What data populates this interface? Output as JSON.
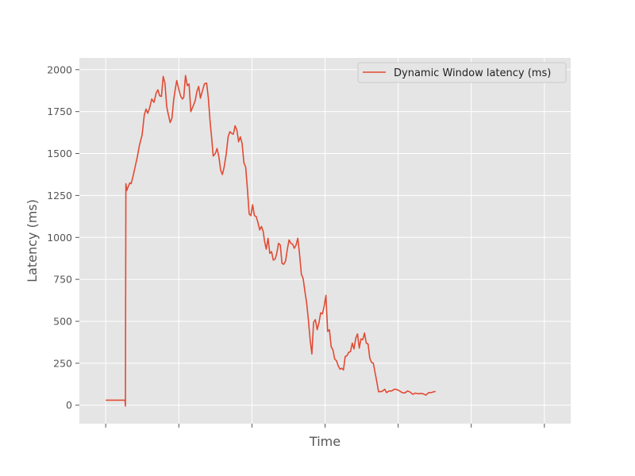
{
  "chart_data": {
    "type": "line",
    "xlabel": "Time",
    "ylabel": "Latency (ms)",
    "xlim": [
      -0.06,
      1.06
    ],
    "ylim": [
      -110,
      2070
    ],
    "x_ticks": [
      0,
      0.1667,
      0.3333,
      0.5,
      0.6667,
      0.8333,
      1
    ],
    "y_ticks": [
      0,
      250,
      500,
      750,
      1000,
      1250,
      1500,
      1750,
      2000
    ],
    "grid": true,
    "legend_position": "top-right",
    "colors": {
      "series": "#e24a33",
      "plot_bg": "#e5e5e5",
      "grid": "#ffffff",
      "text": "#555555"
    },
    "series": [
      {
        "name": "Dynamic Window latency (ms)",
        "points": [
          [
            0.0,
            30
          ],
          [
            0.044,
            30
          ],
          [
            0.045,
            -5
          ],
          [
            0.046,
            1320
          ],
          [
            0.048,
            1280
          ],
          [
            0.051,
            1300
          ],
          [
            0.055,
            1325
          ],
          [
            0.058,
            1320
          ],
          [
            0.062,
            1360
          ],
          [
            0.067,
            1420
          ],
          [
            0.072,
            1480
          ],
          [
            0.077,
            1550
          ],
          [
            0.083,
            1610
          ],
          [
            0.088,
            1730
          ],
          [
            0.092,
            1765
          ],
          [
            0.096,
            1740
          ],
          [
            0.1,
            1770
          ],
          [
            0.105,
            1825
          ],
          [
            0.11,
            1805
          ],
          [
            0.115,
            1860
          ],
          [
            0.119,
            1880
          ],
          [
            0.123,
            1845
          ],
          [
            0.127,
            1840
          ],
          [
            0.131,
            1960
          ],
          [
            0.135,
            1920
          ],
          [
            0.139,
            1780
          ],
          [
            0.143,
            1730
          ],
          [
            0.147,
            1685
          ],
          [
            0.151,
            1710
          ],
          [
            0.155,
            1820
          ],
          [
            0.159,
            1890
          ],
          [
            0.162,
            1935
          ],
          [
            0.166,
            1890
          ],
          [
            0.171,
            1840
          ],
          [
            0.175,
            1825
          ],
          [
            0.178,
            1835
          ],
          [
            0.182,
            1965
          ],
          [
            0.186,
            1905
          ],
          [
            0.19,
            1915
          ],
          [
            0.194,
            1750
          ],
          [
            0.199,
            1780
          ],
          [
            0.204,
            1815
          ],
          [
            0.208,
            1870
          ],
          [
            0.212,
            1900
          ],
          [
            0.216,
            1830
          ],
          [
            0.22,
            1870
          ],
          [
            0.225,
            1915
          ],
          [
            0.23,
            1920
          ],
          [
            0.234,
            1830
          ],
          [
            0.238,
            1690
          ],
          [
            0.242,
            1580
          ],
          [
            0.245,
            1485
          ],
          [
            0.25,
            1500
          ],
          [
            0.254,
            1530
          ],
          [
            0.258,
            1480
          ],
          [
            0.262,
            1400
          ],
          [
            0.266,
            1375
          ],
          [
            0.27,
            1420
          ],
          [
            0.275,
            1500
          ],
          [
            0.279,
            1600
          ],
          [
            0.283,
            1630
          ],
          [
            0.287,
            1620
          ],
          [
            0.291,
            1615
          ],
          [
            0.295,
            1665
          ],
          [
            0.299,
            1640
          ],
          [
            0.303,
            1570
          ],
          [
            0.307,
            1600
          ],
          [
            0.311,
            1560
          ],
          [
            0.315,
            1445
          ],
          [
            0.319,
            1420
          ],
          [
            0.323,
            1290
          ],
          [
            0.327,
            1140
          ],
          [
            0.331,
            1130
          ],
          [
            0.335,
            1195
          ],
          [
            0.339,
            1130
          ],
          [
            0.343,
            1125
          ],
          [
            0.347,
            1090
          ],
          [
            0.351,
            1045
          ],
          [
            0.355,
            1065
          ],
          [
            0.359,
            1035
          ],
          [
            0.362,
            980
          ],
          [
            0.366,
            930
          ],
          [
            0.37,
            995
          ],
          [
            0.374,
            905
          ],
          [
            0.378,
            915
          ],
          [
            0.382,
            865
          ],
          [
            0.386,
            870
          ],
          [
            0.39,
            905
          ],
          [
            0.394,
            965
          ],
          [
            0.398,
            955
          ],
          [
            0.402,
            845
          ],
          [
            0.406,
            840
          ],
          [
            0.41,
            860
          ],
          [
            0.414,
            930
          ],
          [
            0.418,
            985
          ],
          [
            0.422,
            965
          ],
          [
            0.426,
            960
          ],
          [
            0.43,
            935
          ],
          [
            0.434,
            955
          ],
          [
            0.438,
            995
          ],
          [
            0.442,
            900
          ],
          [
            0.446,
            780
          ],
          [
            0.45,
            755
          ],
          [
            0.454,
            680
          ],
          [
            0.458,
            610
          ],
          [
            0.462,
            510
          ],
          [
            0.466,
            390
          ],
          [
            0.47,
            305
          ],
          [
            0.474,
            495
          ],
          [
            0.478,
            510
          ],
          [
            0.482,
            450
          ],
          [
            0.486,
            490
          ],
          [
            0.49,
            550
          ],
          [
            0.494,
            545
          ],
          [
            0.498,
            590
          ],
          [
            0.502,
            655
          ],
          [
            0.506,
            440
          ],
          [
            0.51,
            450
          ],
          [
            0.514,
            350
          ],
          [
            0.518,
            330
          ],
          [
            0.522,
            275
          ],
          [
            0.526,
            265
          ],
          [
            0.53,
            235
          ],
          [
            0.534,
            215
          ],
          [
            0.538,
            220
          ],
          [
            0.542,
            210
          ],
          [
            0.546,
            290
          ],
          [
            0.55,
            295
          ],
          [
            0.554,
            315
          ],
          [
            0.558,
            320
          ],
          [
            0.562,
            370
          ],
          [
            0.566,
            335
          ],
          [
            0.57,
            400
          ],
          [
            0.574,
            425
          ],
          [
            0.578,
            340
          ],
          [
            0.582,
            395
          ],
          [
            0.586,
            390
          ],
          [
            0.59,
            430
          ],
          [
            0.594,
            370
          ],
          [
            0.598,
            365
          ],
          [
            0.602,
            280
          ],
          [
            0.606,
            255
          ],
          [
            0.61,
            250
          ],
          [
            0.614,
            195
          ],
          [
            0.618,
            140
          ],
          [
            0.622,
            80
          ],
          [
            0.63,
            82
          ],
          [
            0.636,
            95
          ],
          [
            0.64,
            75
          ],
          [
            0.646,
            85
          ],
          [
            0.652,
            85
          ],
          [
            0.658,
            95
          ],
          [
            0.664,
            93
          ],
          [
            0.67,
            85
          ],
          [
            0.676,
            75
          ],
          [
            0.682,
            73
          ],
          [
            0.688,
            85
          ],
          [
            0.694,
            78
          ],
          [
            0.7,
            65
          ],
          [
            0.706,
            72
          ],
          [
            0.712,
            68
          ],
          [
            0.718,
            70
          ],
          [
            0.724,
            68
          ],
          [
            0.73,
            60
          ],
          [
            0.736,
            75
          ],
          [
            0.742,
            75
          ],
          [
            0.748,
            80
          ],
          [
            0.752,
            82
          ]
        ]
      }
    ]
  }
}
